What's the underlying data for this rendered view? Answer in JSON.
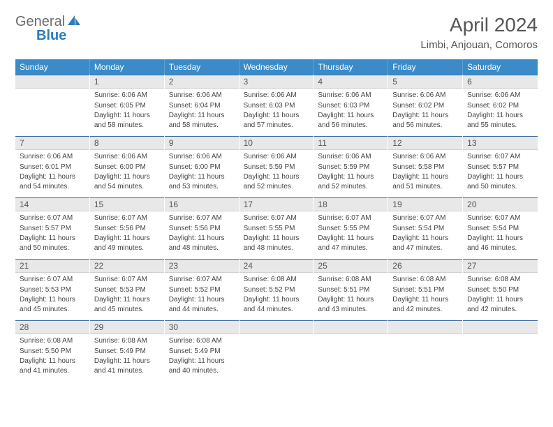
{
  "logo": {
    "text1": "General",
    "text2": "Blue"
  },
  "title": "April 2024",
  "location": "Limbi, Anjouan, Comoros",
  "colors": {
    "header_bg": "#3b8bc9",
    "header_border": "#5fa0d4",
    "daynum_bg": "#e8e8e8",
    "daynum_border_top": "#3b6ea0",
    "logo_gray": "#6b6b6b",
    "logo_blue": "#2c7bbf"
  },
  "day_names": [
    "Sunday",
    "Monday",
    "Tuesday",
    "Wednesday",
    "Thursday",
    "Friday",
    "Saturday"
  ],
  "weeks": [
    [
      {
        "n": "",
        "sr": "",
        "ss": "",
        "dl": ""
      },
      {
        "n": "1",
        "sr": "Sunrise: 6:06 AM",
        "ss": "Sunset: 6:05 PM",
        "dl": "Daylight: 11 hours and 58 minutes."
      },
      {
        "n": "2",
        "sr": "Sunrise: 6:06 AM",
        "ss": "Sunset: 6:04 PM",
        "dl": "Daylight: 11 hours and 58 minutes."
      },
      {
        "n": "3",
        "sr": "Sunrise: 6:06 AM",
        "ss": "Sunset: 6:03 PM",
        "dl": "Daylight: 11 hours and 57 minutes."
      },
      {
        "n": "4",
        "sr": "Sunrise: 6:06 AM",
        "ss": "Sunset: 6:03 PM",
        "dl": "Daylight: 11 hours and 56 minutes."
      },
      {
        "n": "5",
        "sr": "Sunrise: 6:06 AM",
        "ss": "Sunset: 6:02 PM",
        "dl": "Daylight: 11 hours and 56 minutes."
      },
      {
        "n": "6",
        "sr": "Sunrise: 6:06 AM",
        "ss": "Sunset: 6:02 PM",
        "dl": "Daylight: 11 hours and 55 minutes."
      }
    ],
    [
      {
        "n": "7",
        "sr": "Sunrise: 6:06 AM",
        "ss": "Sunset: 6:01 PM",
        "dl": "Daylight: 11 hours and 54 minutes."
      },
      {
        "n": "8",
        "sr": "Sunrise: 6:06 AM",
        "ss": "Sunset: 6:00 PM",
        "dl": "Daylight: 11 hours and 54 minutes."
      },
      {
        "n": "9",
        "sr": "Sunrise: 6:06 AM",
        "ss": "Sunset: 6:00 PM",
        "dl": "Daylight: 11 hours and 53 minutes."
      },
      {
        "n": "10",
        "sr": "Sunrise: 6:06 AM",
        "ss": "Sunset: 5:59 PM",
        "dl": "Daylight: 11 hours and 52 minutes."
      },
      {
        "n": "11",
        "sr": "Sunrise: 6:06 AM",
        "ss": "Sunset: 5:59 PM",
        "dl": "Daylight: 11 hours and 52 minutes."
      },
      {
        "n": "12",
        "sr": "Sunrise: 6:06 AM",
        "ss": "Sunset: 5:58 PM",
        "dl": "Daylight: 11 hours and 51 minutes."
      },
      {
        "n": "13",
        "sr": "Sunrise: 6:07 AM",
        "ss": "Sunset: 5:57 PM",
        "dl": "Daylight: 11 hours and 50 minutes."
      }
    ],
    [
      {
        "n": "14",
        "sr": "Sunrise: 6:07 AM",
        "ss": "Sunset: 5:57 PM",
        "dl": "Daylight: 11 hours and 50 minutes."
      },
      {
        "n": "15",
        "sr": "Sunrise: 6:07 AM",
        "ss": "Sunset: 5:56 PM",
        "dl": "Daylight: 11 hours and 49 minutes."
      },
      {
        "n": "16",
        "sr": "Sunrise: 6:07 AM",
        "ss": "Sunset: 5:56 PM",
        "dl": "Daylight: 11 hours and 48 minutes."
      },
      {
        "n": "17",
        "sr": "Sunrise: 6:07 AM",
        "ss": "Sunset: 5:55 PM",
        "dl": "Daylight: 11 hours and 48 minutes."
      },
      {
        "n": "18",
        "sr": "Sunrise: 6:07 AM",
        "ss": "Sunset: 5:55 PM",
        "dl": "Daylight: 11 hours and 47 minutes."
      },
      {
        "n": "19",
        "sr": "Sunrise: 6:07 AM",
        "ss": "Sunset: 5:54 PM",
        "dl": "Daylight: 11 hours and 47 minutes."
      },
      {
        "n": "20",
        "sr": "Sunrise: 6:07 AM",
        "ss": "Sunset: 5:54 PM",
        "dl": "Daylight: 11 hours and 46 minutes."
      }
    ],
    [
      {
        "n": "21",
        "sr": "Sunrise: 6:07 AM",
        "ss": "Sunset: 5:53 PM",
        "dl": "Daylight: 11 hours and 45 minutes."
      },
      {
        "n": "22",
        "sr": "Sunrise: 6:07 AM",
        "ss": "Sunset: 5:53 PM",
        "dl": "Daylight: 11 hours and 45 minutes."
      },
      {
        "n": "23",
        "sr": "Sunrise: 6:07 AM",
        "ss": "Sunset: 5:52 PM",
        "dl": "Daylight: 11 hours and 44 minutes."
      },
      {
        "n": "24",
        "sr": "Sunrise: 6:08 AM",
        "ss": "Sunset: 5:52 PM",
        "dl": "Daylight: 11 hours and 44 minutes."
      },
      {
        "n": "25",
        "sr": "Sunrise: 6:08 AM",
        "ss": "Sunset: 5:51 PM",
        "dl": "Daylight: 11 hours and 43 minutes."
      },
      {
        "n": "26",
        "sr": "Sunrise: 6:08 AM",
        "ss": "Sunset: 5:51 PM",
        "dl": "Daylight: 11 hours and 42 minutes."
      },
      {
        "n": "27",
        "sr": "Sunrise: 6:08 AM",
        "ss": "Sunset: 5:50 PM",
        "dl": "Daylight: 11 hours and 42 minutes."
      }
    ],
    [
      {
        "n": "28",
        "sr": "Sunrise: 6:08 AM",
        "ss": "Sunset: 5:50 PM",
        "dl": "Daylight: 11 hours and 41 minutes."
      },
      {
        "n": "29",
        "sr": "Sunrise: 6:08 AM",
        "ss": "Sunset: 5:49 PM",
        "dl": "Daylight: 11 hours and 41 minutes."
      },
      {
        "n": "30",
        "sr": "Sunrise: 6:08 AM",
        "ss": "Sunset: 5:49 PM",
        "dl": "Daylight: 11 hours and 40 minutes."
      },
      {
        "n": "",
        "sr": "",
        "ss": "",
        "dl": ""
      },
      {
        "n": "",
        "sr": "",
        "ss": "",
        "dl": ""
      },
      {
        "n": "",
        "sr": "",
        "ss": "",
        "dl": ""
      },
      {
        "n": "",
        "sr": "",
        "ss": "",
        "dl": ""
      }
    ]
  ]
}
